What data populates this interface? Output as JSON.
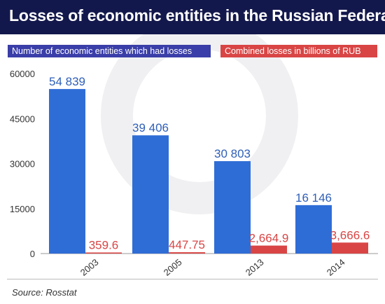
{
  "title": "Losses of economic entities in the Russian Federation",
  "source": "Source: Rosstat",
  "colors": {
    "title_background": "#13184c",
    "entities": "#2f6dd6",
    "losses": "#d94545",
    "entities_label": "#2f5fb8",
    "losses_label": "#d94545",
    "legend_entities_background": "#3a3ea8",
    "legend_losses_background": "#d94545",
    "watermark": "#f0f0f2"
  },
  "icons": {
    "watermark": "circular-logo-watermark"
  },
  "chart_data": {
    "type": "bar",
    "categories": [
      "2003",
      "2005",
      "2013",
      "2014"
    ],
    "ylim": [
      0,
      60000
    ],
    "yticks": [
      "0",
      "15000",
      "30000",
      "45000",
      "60000"
    ],
    "ytick_values": [
      0,
      15000,
      30000,
      45000,
      60000
    ],
    "legend_position": "top",
    "grid": false,
    "series": [
      {
        "name": "Number of economic entities which had losses",
        "values": [
          54839,
          39406,
          30803,
          16146
        ],
        "labels": [
          "54 839",
          "39 406",
          "30 803",
          "16 146"
        ]
      },
      {
        "name": "Combined losses in billions of RUB",
        "values": [
          359.6,
          447.75,
          2664.9,
          3666.6
        ],
        "labels": [
          "359.6",
          "447.75",
          "2,664.9",
          "3,666.6"
        ]
      }
    ]
  }
}
